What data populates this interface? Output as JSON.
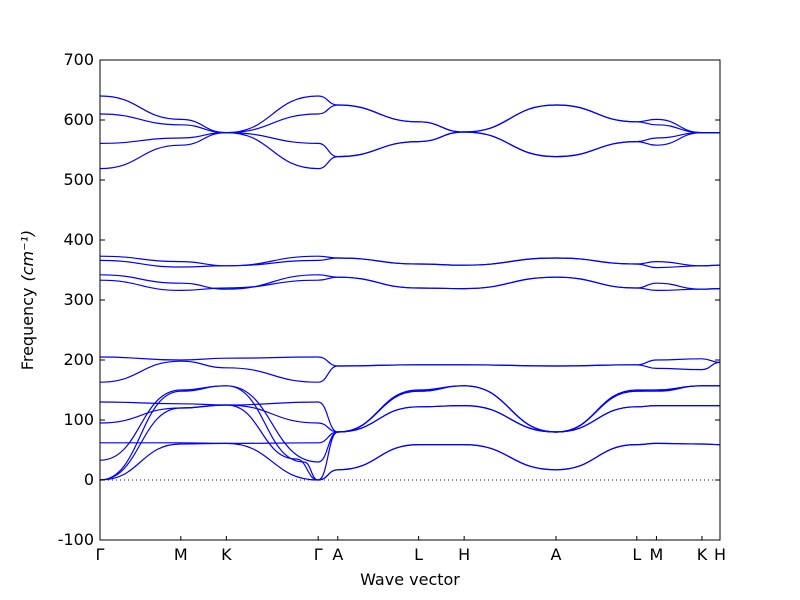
{
  "chart_data": {
    "type": "line",
    "xlabel": "Wave vector",
    "ylabel": "Frequency",
    "ylabel_unit": "(cm⁻¹)",
    "ylim": [
      -100,
      700
    ],
    "yticks": [
      -100,
      0,
      100,
      200,
      300,
      400,
      500,
      600,
      700
    ],
    "xlim": [
      0,
      7.9
    ],
    "xticks": [
      {
        "label": "Γ",
        "x": 0.0
      },
      {
        "label": "M",
        "x": 1.03
      },
      {
        "label": "K",
        "x": 1.61
      },
      {
        "label": "Γ",
        "x": 2.78
      },
      {
        "label": "A",
        "x": 3.03
      },
      {
        "label": "L",
        "x": 4.06
      },
      {
        "label": "H",
        "x": 4.64
      },
      {
        "label": "A",
        "x": 5.81
      },
      {
        "label": "L",
        "x": 6.84
      },
      {
        "label": "M",
        "x": 7.09
      },
      {
        "label": "K",
        "x": 7.67
      },
      {
        "label": "H",
        "x": 7.9
      }
    ],
    "reference_line": {
      "y": 0,
      "style": "dotted"
    },
    "series_color": "#0000ff",
    "series": [
      {
        "x": [
          0,
          1.03,
          1.61,
          2.78,
          3.03,
          4.06,
          4.64,
          5.81,
          6.84,
          7.09,
          7.67,
          7.9
        ],
        "values": [
          0,
          60,
          61,
          0,
          17,
          59,
          59,
          17,
          59,
          61,
          60,
          59
        ]
      },
      {
        "x": [
          0,
          1.03,
          1.61,
          2.5,
          2.78,
          3.03,
          4.06,
          4.64,
          5.81,
          6.84,
          7.09,
          7.67,
          7.9
        ],
        "values": [
          0,
          120,
          125,
          35,
          0,
          17,
          59,
          59,
          17,
          59,
          61,
          60,
          59
        ]
      },
      {
        "x": [
          0,
          1.03,
          1.61,
          2.6,
          2.78,
          3.03,
          4.06,
          4.64,
          5.81,
          6.84,
          7.09,
          7.67,
          7.9
        ],
        "values": [
          0,
          148,
          157,
          30,
          0,
          80,
          148,
          157,
          80,
          148,
          150,
          157,
          157
        ]
      },
      {
        "x": [
          0,
          1.03,
          1.61,
          2.78,
          3.03,
          4.06,
          4.64,
          5.81,
          6.84,
          7.09,
          7.67,
          7.9
        ],
        "values": [
          33,
          150,
          157,
          30,
          80,
          150,
          157,
          80,
          150,
          150,
          157,
          157
        ]
      },
      {
        "x": [
          0,
          1.03,
          1.61,
          2.78,
          3.03,
          4.06,
          4.64,
          5.81,
          6.84,
          7.09,
          7.67,
          7.9
        ],
        "values": [
          62,
          62,
          61,
          62,
          80,
          122,
          124,
          80,
          122,
          124,
          124,
          124
        ]
      },
      {
        "x": [
          0,
          1.03,
          1.61,
          2.78,
          3.03,
          4.06,
          4.64,
          5.81,
          6.84,
          7.09,
          7.67,
          7.9
        ],
        "values": [
          95,
          120,
          125,
          95,
          80,
          122,
          124,
          80,
          122,
          124,
          124,
          124
        ]
      },
      {
        "x": [
          0,
          1.03,
          1.61,
          2.78,
          3.03,
          4.06,
          4.64,
          5.81,
          6.84,
          7.09,
          7.67,
          7.9
        ],
        "values": [
          130,
          127,
          125,
          130,
          80,
          148,
          157,
          80,
          148,
          148,
          157,
          157
        ]
      },
      {
        "x": [
          0,
          1.03,
          1.61,
          2.78,
          3.03,
          4.06,
          4.64,
          5.81,
          6.84,
          7.09,
          7.67,
          7.9
        ],
        "values": [
          163,
          198,
          187,
          163,
          190,
          192,
          192,
          190,
          192,
          186,
          184,
          196
        ]
      },
      {
        "x": [
          0,
          1.03,
          1.61,
          2.78,
          3.03,
          4.06,
          4.64,
          5.81,
          6.84,
          7.09,
          7.67,
          7.9
        ],
        "values": [
          205,
          200,
          203,
          205,
          190,
          192,
          192,
          190,
          192,
          200,
          202,
          196
        ]
      },
      {
        "x": [
          0,
          1.03,
          1.61,
          2.78,
          3.03,
          4.06,
          4.64,
          5.81,
          6.84,
          7.09,
          7.67,
          7.9
        ],
        "values": [
          333,
          316,
          320,
          333,
          338,
          320,
          319,
          338,
          320,
          316,
          318,
          319
        ]
      },
      {
        "x": [
          0,
          1.03,
          1.61,
          2.78,
          3.03,
          4.06,
          4.64,
          5.81,
          6.84,
          7.09,
          7.67,
          7.9
        ],
        "values": [
          342,
          328,
          318,
          342,
          338,
          320,
          319,
          338,
          320,
          328,
          318,
          319
        ]
      },
      {
        "x": [
          0,
          1.03,
          1.61,
          2.78,
          3.03,
          4.06,
          4.64,
          5.81,
          6.84,
          7.09,
          7.67,
          7.9
        ],
        "values": [
          366,
          355,
          357,
          366,
          370,
          360,
          358,
          370,
          360,
          354,
          357,
          358
        ]
      },
      {
        "x": [
          0,
          1.03,
          1.61,
          2.78,
          3.03,
          4.06,
          4.64,
          5.81,
          6.84,
          7.09,
          7.67,
          7.9
        ],
        "values": [
          373,
          364,
          357,
          373,
          370,
          360,
          358,
          370,
          360,
          364,
          357,
          358
        ]
      },
      {
        "x": [
          0,
          1.03,
          1.61,
          2.78,
          3.03,
          4.06,
          4.64,
          5.81,
          6.84,
          7.09,
          7.67,
          7.9
        ],
        "values": [
          519,
          558,
          579,
          519,
          539,
          564,
          580,
          539,
          564,
          558,
          579,
          579
        ]
      },
      {
        "x": [
          0,
          1.03,
          1.61,
          2.78,
          3.03,
          4.06,
          4.64,
          5.81,
          6.84,
          7.09,
          7.67,
          7.9
        ],
        "values": [
          561,
          570,
          579,
          561,
          539,
          564,
          580,
          539,
          564,
          570,
          579,
          579
        ]
      },
      {
        "x": [
          0,
          1.03,
          1.61,
          2.78,
          3.03,
          4.06,
          4.64,
          5.81,
          6.84,
          7.09,
          7.67,
          7.9
        ],
        "values": [
          610,
          592,
          579,
          610,
          625,
          597,
          580,
          625,
          597,
          592,
          579,
          579
        ]
      },
      {
        "x": [
          0,
          1.03,
          1.61,
          2.78,
          3.03,
          4.06,
          4.64,
          5.81,
          6.84,
          7.09,
          7.67,
          7.9
        ],
        "values": [
          640,
          601,
          579,
          640,
          625,
          597,
          580,
          625,
          597,
          601,
          579,
          579
        ]
      }
    ]
  }
}
